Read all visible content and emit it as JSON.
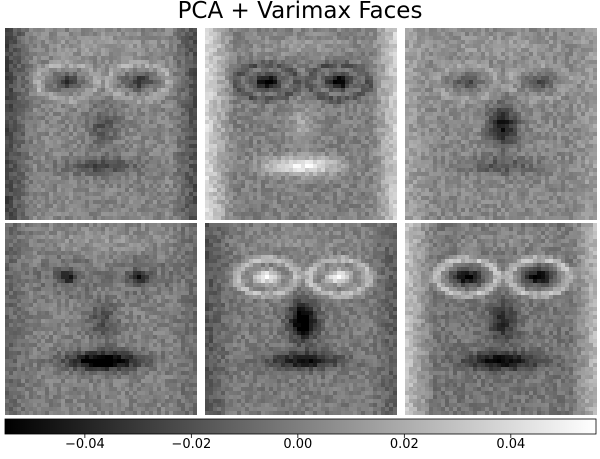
{
  "chart_data": {
    "type": "heatmap",
    "title": "PCA + Varimax Faces",
    "panels": [
      {
        "name": ""
      },
      {
        "name": ""
      },
      {
        "name": ""
      },
      {
        "name": ""
      },
      {
        "name": ""
      },
      {
        "name": ""
      }
    ],
    "colormap": "gray",
    "colorbar": {
      "range": [
        -0.055,
        0.056
      ],
      "ticks": [
        -0.04,
        -0.02,
        0.0,
        0.02,
        0.04
      ],
      "tick_labels": [
        "−0.04",
        "−0.02",
        "0.00",
        "0.02",
        "0.04"
      ]
    },
    "grid": false
  }
}
